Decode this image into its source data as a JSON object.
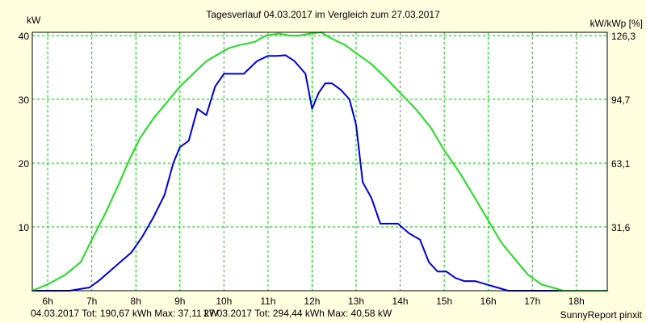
{
  "chart_data": {
    "type": "line",
    "title": "Tagesverlauf 04.03.2017 im Vergleich zum 27.03.2017",
    "ylabel_left": "kW",
    "ylabel_right": "kW/kWp [%]",
    "xlim": [
      5.65,
      18.7
    ],
    "ylim": [
      0,
      40.5
    ],
    "x_ticks": [
      {
        "value": 6,
        "label": "6h"
      },
      {
        "value": 7,
        "label": "7h"
      },
      {
        "value": 8,
        "label": "8h"
      },
      {
        "value": 9,
        "label": "9h"
      },
      {
        "value": 10,
        "label": "10h"
      },
      {
        "value": 11,
        "label": "11h"
      },
      {
        "value": 12,
        "label": "12h"
      },
      {
        "value": 13,
        "label": "13h"
      },
      {
        "value": 14,
        "label": "14h"
      },
      {
        "value": 15,
        "label": "15h"
      },
      {
        "value": 16,
        "label": "16h"
      },
      {
        "value": 17,
        "label": "17h"
      },
      {
        "value": 18,
        "label": "18h"
      }
    ],
    "y_ticks_left": [
      {
        "value": 10,
        "label": "10"
      },
      {
        "value": 20,
        "label": "20"
      },
      {
        "value": 30,
        "label": "30"
      },
      {
        "value": 40,
        "label": "40"
      }
    ],
    "y_ticks_right": [
      {
        "value": 10,
        "label": "31,6"
      },
      {
        "value": 20,
        "label": "63,1"
      },
      {
        "value": 30,
        "label": "94,7"
      },
      {
        "value": 40,
        "label": "126,3"
      }
    ],
    "grid": true,
    "series": [
      {
        "name": "04.03.2017",
        "color": "#0000DD",
        "x": [
          5.65,
          6.5,
          6.95,
          7.15,
          7.4,
          7.65,
          7.9,
          8.15,
          8.4,
          8.65,
          8.85,
          9.0,
          9.2,
          9.4,
          9.6,
          9.8,
          10.0,
          10.2,
          10.45,
          10.75,
          11.0,
          11.2,
          11.4,
          11.6,
          11.85,
          12.0,
          12.15,
          12.3,
          12.45,
          12.65,
          12.85,
          13.0,
          13.15,
          13.35,
          13.55,
          13.75,
          13.95,
          14.2,
          14.45,
          14.65,
          14.85,
          15.05,
          15.25,
          15.45,
          15.7,
          15.95,
          16.2,
          16.45,
          16.7,
          16.95,
          17.2,
          17.5,
          18.0,
          18.7
        ],
        "y": [
          0,
          0,
          0.5,
          1.5,
          3.0,
          4.5,
          6.0,
          8.5,
          11.5,
          15.0,
          20.0,
          22.5,
          23.5,
          28.5,
          27.5,
          32.0,
          34.0,
          34.0,
          34.0,
          36.0,
          36.8,
          36.8,
          36.9,
          36.0,
          34.0,
          28.5,
          31.0,
          32.5,
          32.5,
          31.5,
          30.0,
          26.0,
          17.0,
          14.5,
          10.5,
          10.5,
          10.5,
          9.0,
          8.0,
          4.5,
          3.0,
          3.0,
          2.0,
          1.5,
          1.5,
          1.0,
          0.5,
          0,
          0,
          0,
          0,
          0,
          0,
          0
        ]
      },
      {
        "name": "27.03.2017",
        "color": "#22DD22",
        "x": [
          5.65,
          6.0,
          6.4,
          6.75,
          7.0,
          7.3,
          7.6,
          7.85,
          8.1,
          8.4,
          8.7,
          9.0,
          9.3,
          9.6,
          9.85,
          10.1,
          10.35,
          10.7,
          10.95,
          11.25,
          11.5,
          11.7,
          11.95,
          12.2,
          12.45,
          12.75,
          13.05,
          13.35,
          13.65,
          14.0,
          14.35,
          14.7,
          15.0,
          15.35,
          15.7,
          16.0,
          16.3,
          16.6,
          16.9,
          17.2,
          17.45,
          17.7,
          17.9,
          18.1,
          18.3,
          18.7
        ],
        "y": [
          0,
          1.0,
          2.5,
          4.5,
          8.0,
          12.0,
          16.5,
          20.5,
          24.0,
          27.0,
          29.5,
          32.0,
          34.0,
          36.0,
          37.0,
          38.0,
          38.5,
          39.0,
          40.0,
          40.3,
          40.0,
          40.0,
          40.3,
          40.5,
          39.5,
          38.5,
          37.0,
          35.5,
          33.5,
          31.0,
          28.5,
          25.5,
          22.0,
          18.5,
          14.5,
          11.0,
          7.5,
          5.0,
          2.5,
          1.0,
          0.5,
          0,
          0,
          0,
          0,
          0
        ]
      }
    ]
  },
  "footer": {
    "series1_text": "04.03.2017 Tot: 190,67 kWh Max: 37,11 kW",
    "series2_text": "27.03.2017 Tot: 294,44 kWh Max: 40,58 kW",
    "credit": "SunnyReport pinxit"
  },
  "colors": {
    "background": "#FFFFE0",
    "plot_background": "#FFFFFF",
    "grid": "#00CC00"
  }
}
